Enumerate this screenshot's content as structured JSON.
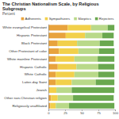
{
  "chart_data": {
    "type": "bar",
    "orientation": "horizontal",
    "stacked": true,
    "title": "The Christian Nationalism Scale, by Religious Subgroups",
    "subtitle": "Percent",
    "legend": "top",
    "categories": [
      "White evangelical Protestant",
      "Hispanic Protestant",
      "Black Protestant",
      "Other Protestant of color",
      "White mainline Protestant",
      "Hispanic Catholic",
      "White Catholic",
      "Latter-day Saint",
      "Jewish",
      "Other non-Christian religion",
      "Religiously unaffiliated"
    ],
    "series": [
      {
        "name": "Adherents",
        "color": "#e8a33d",
        "values": [
          29,
          26,
          14,
          16,
          11,
          14,
          11,
          11,
          1,
          4,
          3
        ]
      },
      {
        "name": "Sympathizers",
        "color": "#f2d04b",
        "values": [
          35,
          29,
          29,
          29,
          28,
          28,
          28,
          24,
          11,
          10,
          8
        ]
      },
      {
        "name": "Skeptics",
        "color": "#b9d989",
        "values": [
          25,
          26,
          34,
          31,
          35,
          33,
          36,
          36,
          23,
          23,
          20
        ]
      },
      {
        "name": "Rejecters",
        "color": "#6aa84f",
        "values": [
          10,
          17,
          21,
          23,
          25,
          24,
          24,
          28,
          64,
          61,
          68
        ]
      }
    ],
    "xlim": [
      0,
      100
    ],
    "xticks": [
      0,
      25,
      50,
      75,
      100
    ]
  }
}
